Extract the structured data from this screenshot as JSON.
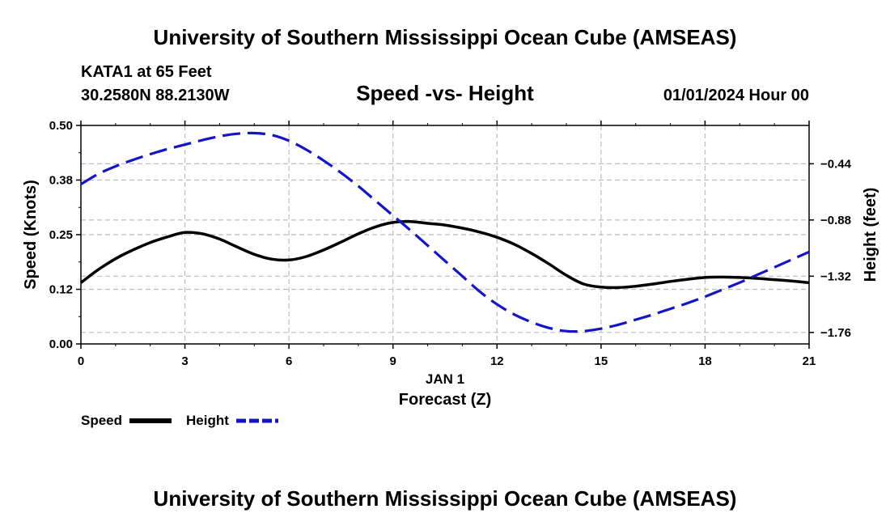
{
  "header": {
    "title_top": "University of Southern Mississippi Ocean Cube (AMSEAS)",
    "station": "KATA1 at 65 Feet",
    "location": "30.2580N  88.2130W",
    "datetime": "01/01/2024 Hour 00",
    "title_bottom": "University of Southern Mississippi Ocean Cube (AMSEAS)"
  },
  "colors": {
    "speed": "#000000",
    "height": "#1414c8",
    "grid": "#bdbdbd"
  },
  "chart_data": {
    "type": "line",
    "title": "Speed -vs- Height",
    "xlabel": "Forecast (Z)",
    "xsublabel": "JAN 1",
    "ylabel": "Speed (Knots)",
    "y2label": "Height (feet)",
    "xlim": [
      0,
      21
    ],
    "ylim": [
      0,
      0.5
    ],
    "y2lim": [
      -1.85,
      -0.14
    ],
    "x_ticks": [
      0,
      3,
      6,
      9,
      12,
      15,
      18,
      21
    ],
    "x_tick_labels": [
      "0",
      "3",
      "6",
      "9",
      "12",
      "15",
      "18",
      "21"
    ],
    "y_ticks": [
      0,
      0.125,
      0.25,
      0.375,
      0.5
    ],
    "y_tick_labels": [
      "0.00",
      "0.12",
      "0.25",
      "0.38",
      "0.50"
    ],
    "y2_ticks": [
      -0.44,
      -0.88,
      -1.32,
      -1.76
    ],
    "y2_tick_labels": [
      "-0.44",
      "-0.88",
      "-1.32",
      "-1.76"
    ],
    "grid": true,
    "legend_position": "bottom-left",
    "series": [
      {
        "name": "Speed",
        "axis": "left",
        "style": "solid",
        "x": [
          0,
          0.5,
          1,
          1.5,
          2,
          2.5,
          3,
          3.5,
          4,
          4.5,
          5,
          5.5,
          6,
          6.5,
          7,
          7.5,
          8,
          8.5,
          9,
          9.5,
          10,
          10.5,
          11,
          11.5,
          12,
          12.5,
          13,
          13.5,
          14,
          14.5,
          15,
          15.5,
          16,
          16.5,
          17,
          17.5,
          18,
          18.5,
          19,
          19.5,
          20,
          20.5,
          21
        ],
        "values": [
          0.14,
          0.17,
          0.195,
          0.215,
          0.232,
          0.245,
          0.255,
          0.252,
          0.24,
          0.222,
          0.205,
          0.194,
          0.192,
          0.2,
          0.215,
          0.233,
          0.252,
          0.268,
          0.278,
          0.28,
          0.276,
          0.272,
          0.265,
          0.256,
          0.244,
          0.228,
          0.207,
          0.183,
          0.157,
          0.137,
          0.13,
          0.129,
          0.132,
          0.137,
          0.143,
          0.148,
          0.152,
          0.153,
          0.152,
          0.15,
          0.147,
          0.144,
          0.14
        ]
      },
      {
        "name": "Height",
        "axis": "right",
        "style": "dashed",
        "x": [
          0,
          0.5,
          1,
          1.5,
          2,
          2.5,
          3,
          3.5,
          4,
          4.5,
          5,
          5.5,
          6,
          6.5,
          7,
          7.5,
          8,
          8.5,
          9,
          9.5,
          10,
          10.5,
          11,
          11.5,
          12,
          12.5,
          13,
          13.5,
          14,
          14.5,
          15,
          15.5,
          16,
          16.5,
          17,
          17.5,
          18,
          18.5,
          19,
          19.5,
          20,
          20.5,
          21
        ],
        "values": [
          -0.6,
          -0.52,
          -0.46,
          -0.41,
          -0.365,
          -0.325,
          -0.29,
          -0.255,
          -0.225,
          -0.205,
          -0.2,
          -0.215,
          -0.26,
          -0.33,
          -0.415,
          -0.51,
          -0.615,
          -0.73,
          -0.845,
          -0.96,
          -1.08,
          -1.2,
          -1.32,
          -1.44,
          -1.54,
          -1.62,
          -1.68,
          -1.725,
          -1.75,
          -1.75,
          -1.73,
          -1.7,
          -1.66,
          -1.62,
          -1.575,
          -1.53,
          -1.48,
          -1.425,
          -1.37,
          -1.31,
          -1.25,
          -1.19,
          -1.13
        ]
      }
    ]
  }
}
